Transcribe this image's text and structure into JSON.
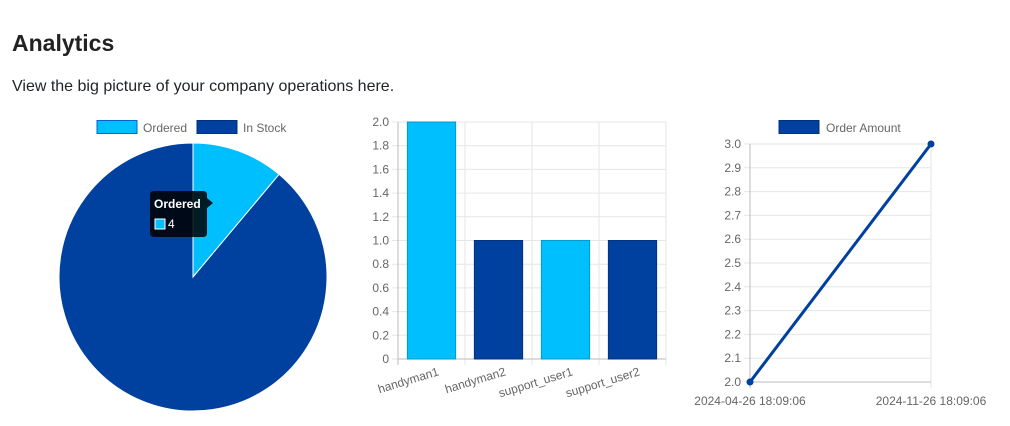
{
  "header": {
    "title": "Analytics",
    "subtitle": "View the big picture of your company operations here."
  },
  "colors": {
    "light": "#00bfff",
    "dark": "#00409e",
    "grid": "#e6e6e6",
    "axis": "#bbbbbb",
    "text": "#666666"
  },
  "tooltip": {
    "title": "Ordered",
    "value": "4"
  },
  "chart_data": [
    {
      "type": "pie",
      "legend_position": "top",
      "labels": [
        "Ordered",
        "In Stock"
      ],
      "values": [
        4,
        32
      ],
      "colors": [
        "#00bfff",
        "#00409e"
      ]
    },
    {
      "type": "bar",
      "categories": [
        "handyman1",
        "handyman2",
        "support_user1",
        "support_user2"
      ],
      "values": [
        2,
        1,
        1,
        1
      ],
      "colors": [
        "#00bfff",
        "#00409e",
        "#00bfff",
        "#00409e"
      ],
      "ylim": [
        0,
        2.0
      ],
      "yticks": [
        "0",
        "0.2",
        "0.4",
        "0.6",
        "0.8",
        "1.0",
        "1.2",
        "1.4",
        "1.6",
        "1.8",
        "2.0"
      ],
      "grid": true
    },
    {
      "type": "line",
      "legend_position": "top",
      "series": [
        {
          "name": "Order Amount",
          "color": "#00409e",
          "x": [
            "2024-04-26 18:09:06",
            "2024-11-26 18:09:06"
          ],
          "values": [
            2.0,
            3.0
          ]
        }
      ],
      "ylim": [
        2.0,
        3.0
      ],
      "yticks": [
        "2.0",
        "2.1",
        "2.2",
        "2.3",
        "2.4",
        "2.5",
        "2.6",
        "2.7",
        "2.8",
        "2.9",
        "3.0"
      ],
      "grid": true
    }
  ]
}
